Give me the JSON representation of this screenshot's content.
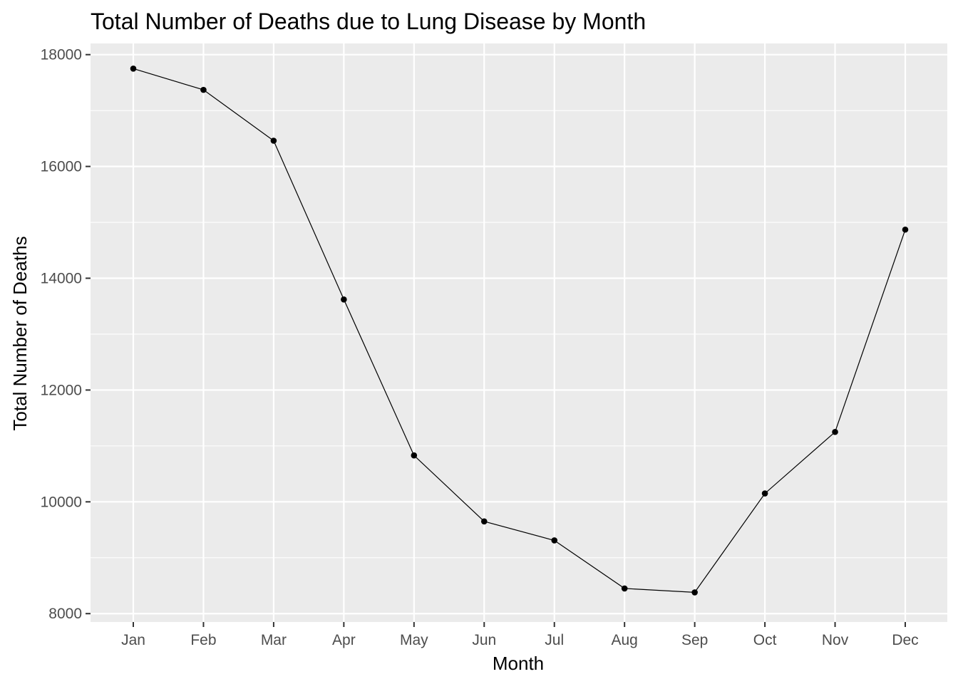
{
  "chart_data": {
    "type": "line",
    "title": "Total Number of Deaths due to Lung Disease by Month",
    "xlabel": "Month",
    "ylabel": "Total Number of Deaths",
    "categories": [
      "Jan",
      "Feb",
      "Mar",
      "Apr",
      "May",
      "Jun",
      "Jul",
      "Aug",
      "Sep",
      "Oct",
      "Nov",
      "Dec"
    ],
    "values": [
      17750,
      17370,
      16460,
      13620,
      10830,
      9650,
      9310,
      8450,
      8380,
      10150,
      11250,
      14870
    ],
    "ylim": [
      7850,
      18200
    ],
    "yticks": [
      8000,
      10000,
      12000,
      14000,
      16000,
      18000
    ],
    "grid": true,
    "legend": "none",
    "colors": {
      "panel": "#ebebeb",
      "grid": "#ffffff",
      "line": "#000000",
      "point": "#000000"
    }
  }
}
